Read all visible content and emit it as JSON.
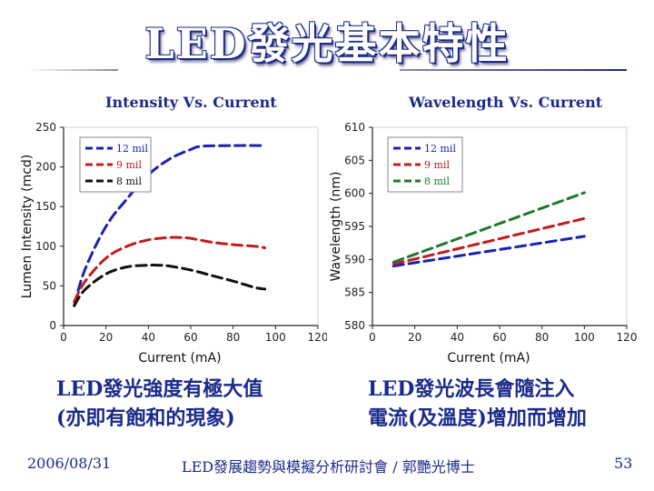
{
  "page_title": "LED發光基本特性",
  "left_note": [
    "LED發光強度有極大值",
    "(亦即有飽和的現象)"
  ],
  "right_note": [
    "LED發光波長會隨注入",
    "電流(及溫度)增加而增加"
  ],
  "footer": {
    "date": "2006/08/31",
    "center": "LED發展趨勢與模擬分析研討會 / 郭艷光博士",
    "page": "53"
  },
  "colors": {
    "blue": "#1a22b5",
    "red": "#c41a1a",
    "green": "#1e7a2a",
    "black": "#111111",
    "title": "#1b2a8a"
  },
  "chart_data": [
    {
      "type": "line",
      "title": "Intensity Vs. Current",
      "xlabel": "Current (mA)",
      "ylabel": "Lumen Intensity (mcd)",
      "xlim": [
        0,
        120
      ],
      "ylim": [
        0,
        250
      ],
      "xticks": [
        0,
        20,
        40,
        60,
        80,
        100,
        120
      ],
      "yticks": [
        0,
        50,
        100,
        150,
        200,
        250
      ],
      "legend": [
        "12 mil",
        "9 mil",
        "8 mil"
      ],
      "series": [
        {
          "name": "12 mil",
          "color": "blue",
          "x": [
            5,
            10,
            20,
            30,
            40,
            50,
            60,
            65,
            80,
            95
          ],
          "y": [
            25,
            70,
            125,
            160,
            190,
            210,
            222,
            226,
            227,
            227
          ]
        },
        {
          "name": "9 mil",
          "color": "red",
          "x": [
            5,
            10,
            20,
            30,
            40,
            50,
            55,
            60,
            70,
            80,
            90,
            95
          ],
          "y": [
            30,
            55,
            85,
            100,
            108,
            111,
            111,
            110,
            105,
            102,
            100,
            98
          ]
        },
        {
          "name": "8 mil",
          "color": "black",
          "x": [
            5,
            10,
            20,
            30,
            40,
            45,
            50,
            60,
            70,
            80,
            90,
            95
          ],
          "y": [
            25,
            45,
            65,
            74,
            76,
            76,
            75,
            70,
            63,
            56,
            48,
            46
          ]
        }
      ]
    },
    {
      "type": "line",
      "title": "Wavelength Vs. Current",
      "xlabel": "Current (mA)",
      "ylabel": "Wavelength (nm)",
      "xlim": [
        0,
        120
      ],
      "ylim": [
        580,
        610
      ],
      "xticks": [
        0,
        20,
        40,
        60,
        80,
        100,
        120
      ],
      "yticks": [
        580,
        585,
        590,
        595,
        600,
        605,
        610
      ],
      "legend": [
        "12 mil",
        "9 mil",
        "8 mil"
      ],
      "series": [
        {
          "name": "12 mil",
          "color": "blue",
          "x": [
            10,
            100
          ],
          "y": [
            589.0,
            593.5
          ]
        },
        {
          "name": "9 mil",
          "color": "red",
          "x": [
            10,
            100
          ],
          "y": [
            589.3,
            596.2
          ]
        },
        {
          "name": "8 mil",
          "color": "green",
          "x": [
            10,
            100
          ],
          "y": [
            589.6,
            600.1
          ]
        }
      ]
    }
  ]
}
